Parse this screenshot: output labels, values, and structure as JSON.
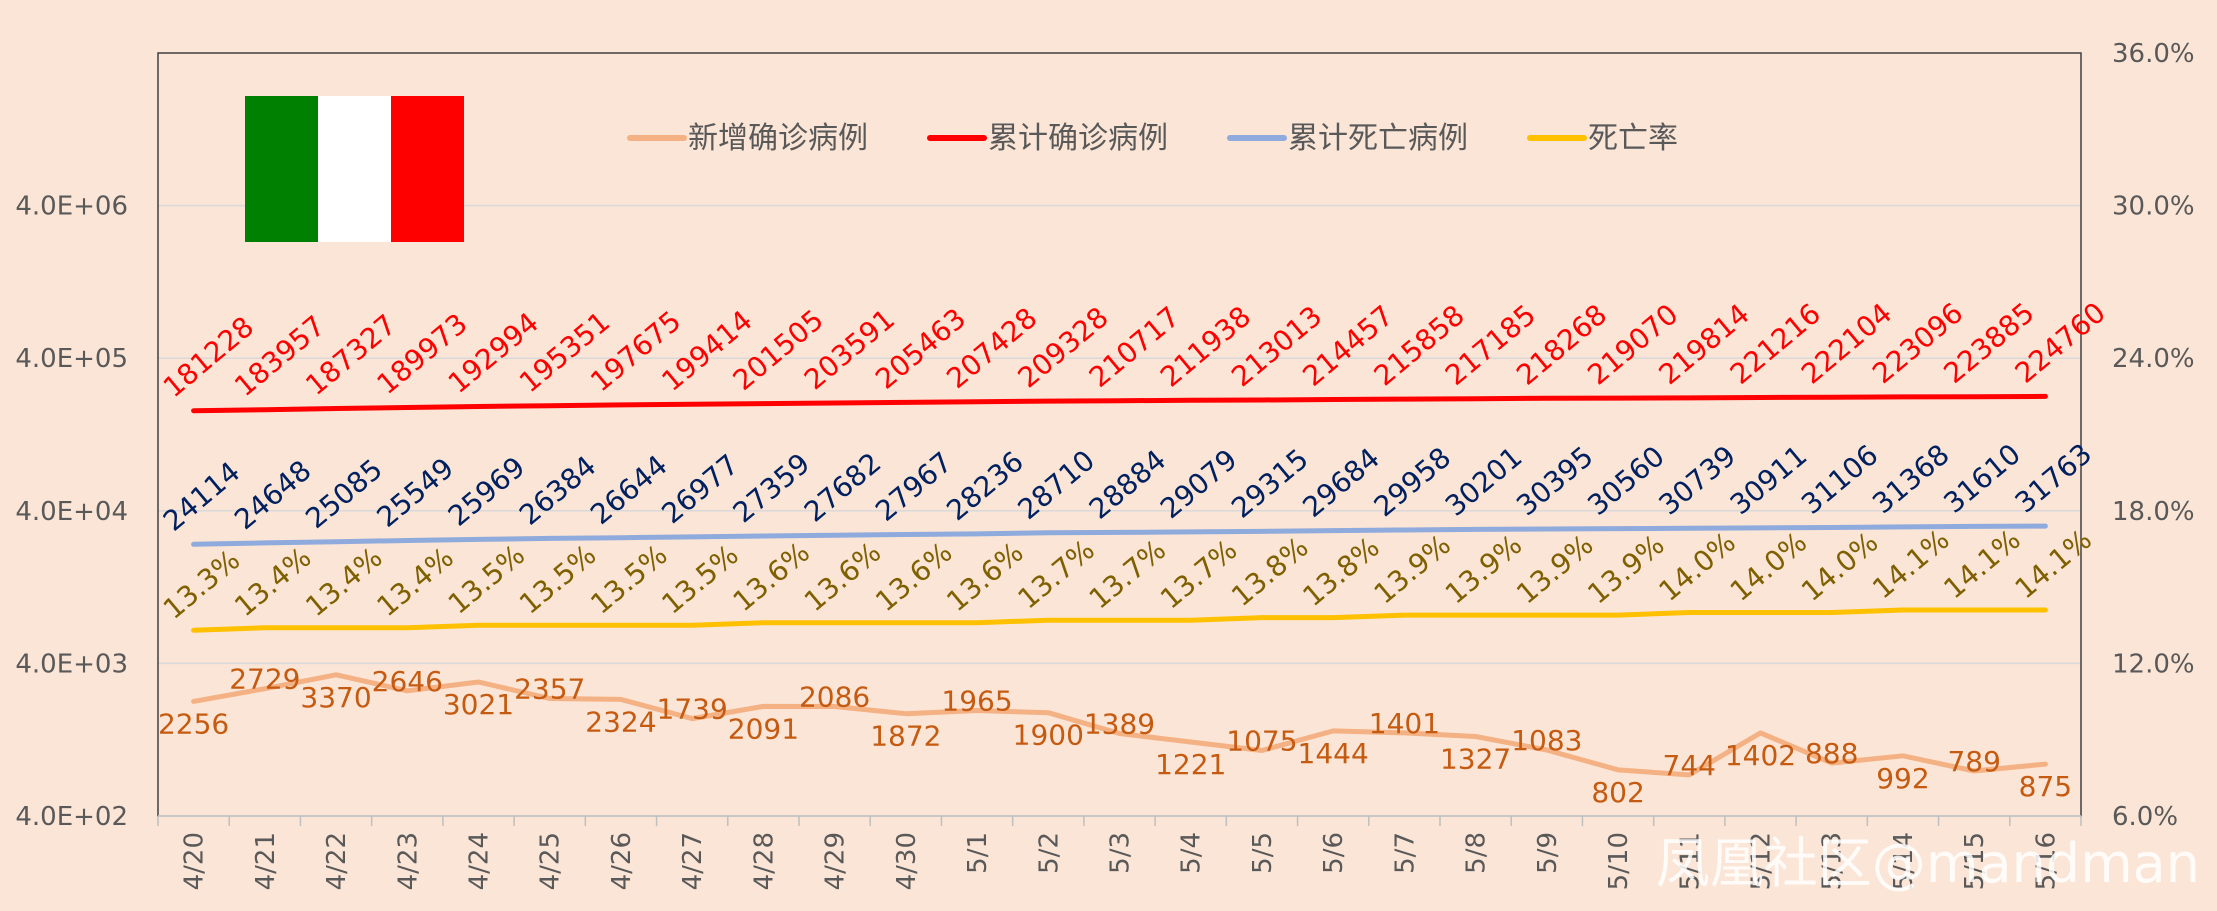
{
  "chart_data": {
    "type": "line",
    "categories": [
      "4/20",
      "4/21",
      "4/22",
      "4/23",
      "4/24",
      "4/25",
      "4/26",
      "4/27",
      "4/28",
      "4/29",
      "4/30",
      "5/1",
      "5/2",
      "5/3",
      "5/4",
      "5/5",
      "5/6",
      "5/7",
      "5/8",
      "5/9",
      "5/10",
      "5/11",
      "5/12",
      "5/13",
      "5/14",
      "5/15",
      "5/16"
    ],
    "left_axis": {
      "scale": "log",
      "ticks": [
        "4.0E+02",
        "4.0E+03",
        "4.0E+04",
        "4.0E+05",
        "4.0E+06"
      ],
      "ylim": [
        400,
        40000000
      ]
    },
    "right_axis": {
      "scale": "linear",
      "ticks": [
        "6.0%",
        "12.0%",
        "18.0%",
        "24.0%",
        "30.0%",
        "36.0%"
      ],
      "ylim": [
        6.0,
        36.0
      ]
    },
    "series": [
      {
        "name": "新增确诊病例",
        "axis": "left",
        "color": "#f4b183",
        "label_color": "#c55a11",
        "values": [
          2256,
          2729,
          3370,
          2646,
          3021,
          2357,
          2324,
          1739,
          2091,
          2086,
          1872,
          1965,
          1900,
          1389,
          1221,
          1075,
          1444,
          1401,
          1327,
          1083,
          802,
          744,
          1402,
          888,
          992,
          789,
          875
        ]
      },
      {
        "name": "累计确诊病例",
        "axis": "left",
        "color": "#ff0000",
        "label_color": "#ff0000",
        "values": [
          181228,
          183957,
          187327,
          189973,
          192994,
          195351,
          197675,
          199414,
          201505,
          203591,
          205463,
          207428,
          209328,
          210717,
          211938,
          213013,
          214457,
          215858,
          217185,
          218268,
          219070,
          219814,
          221216,
          222104,
          223096,
          223885,
          224760
        ]
      },
      {
        "name": "累计死亡病例",
        "axis": "left",
        "color": "#8faadc",
        "label_color": "#002060",
        "values": [
          24114,
          24648,
          25085,
          25549,
          25969,
          26384,
          26644,
          26977,
          27359,
          27682,
          27967,
          28236,
          28710,
          28884,
          29079,
          29315,
          29684,
          29958,
          30201,
          30395,
          30560,
          30739,
          30911,
          31106,
          31368,
          31610,
          31763
        ]
      },
      {
        "name": "死亡率",
        "axis": "right",
        "color": "#ffc000",
        "label_color": "#7f6000",
        "values": [
          13.3,
          13.4,
          13.4,
          13.4,
          13.5,
          13.5,
          13.5,
          13.5,
          13.6,
          13.6,
          13.6,
          13.6,
          13.7,
          13.7,
          13.7,
          13.8,
          13.8,
          13.9,
          13.9,
          13.9,
          13.9,
          14.0,
          14.0,
          14.0,
          14.1,
          14.1,
          14.1
        ]
      }
    ],
    "legend": "top-center",
    "grid": true,
    "flag_colors": [
      "#008000",
      "#ffffff",
      "#ff0000"
    ]
  },
  "watermark": "凤凰社区@mandman"
}
